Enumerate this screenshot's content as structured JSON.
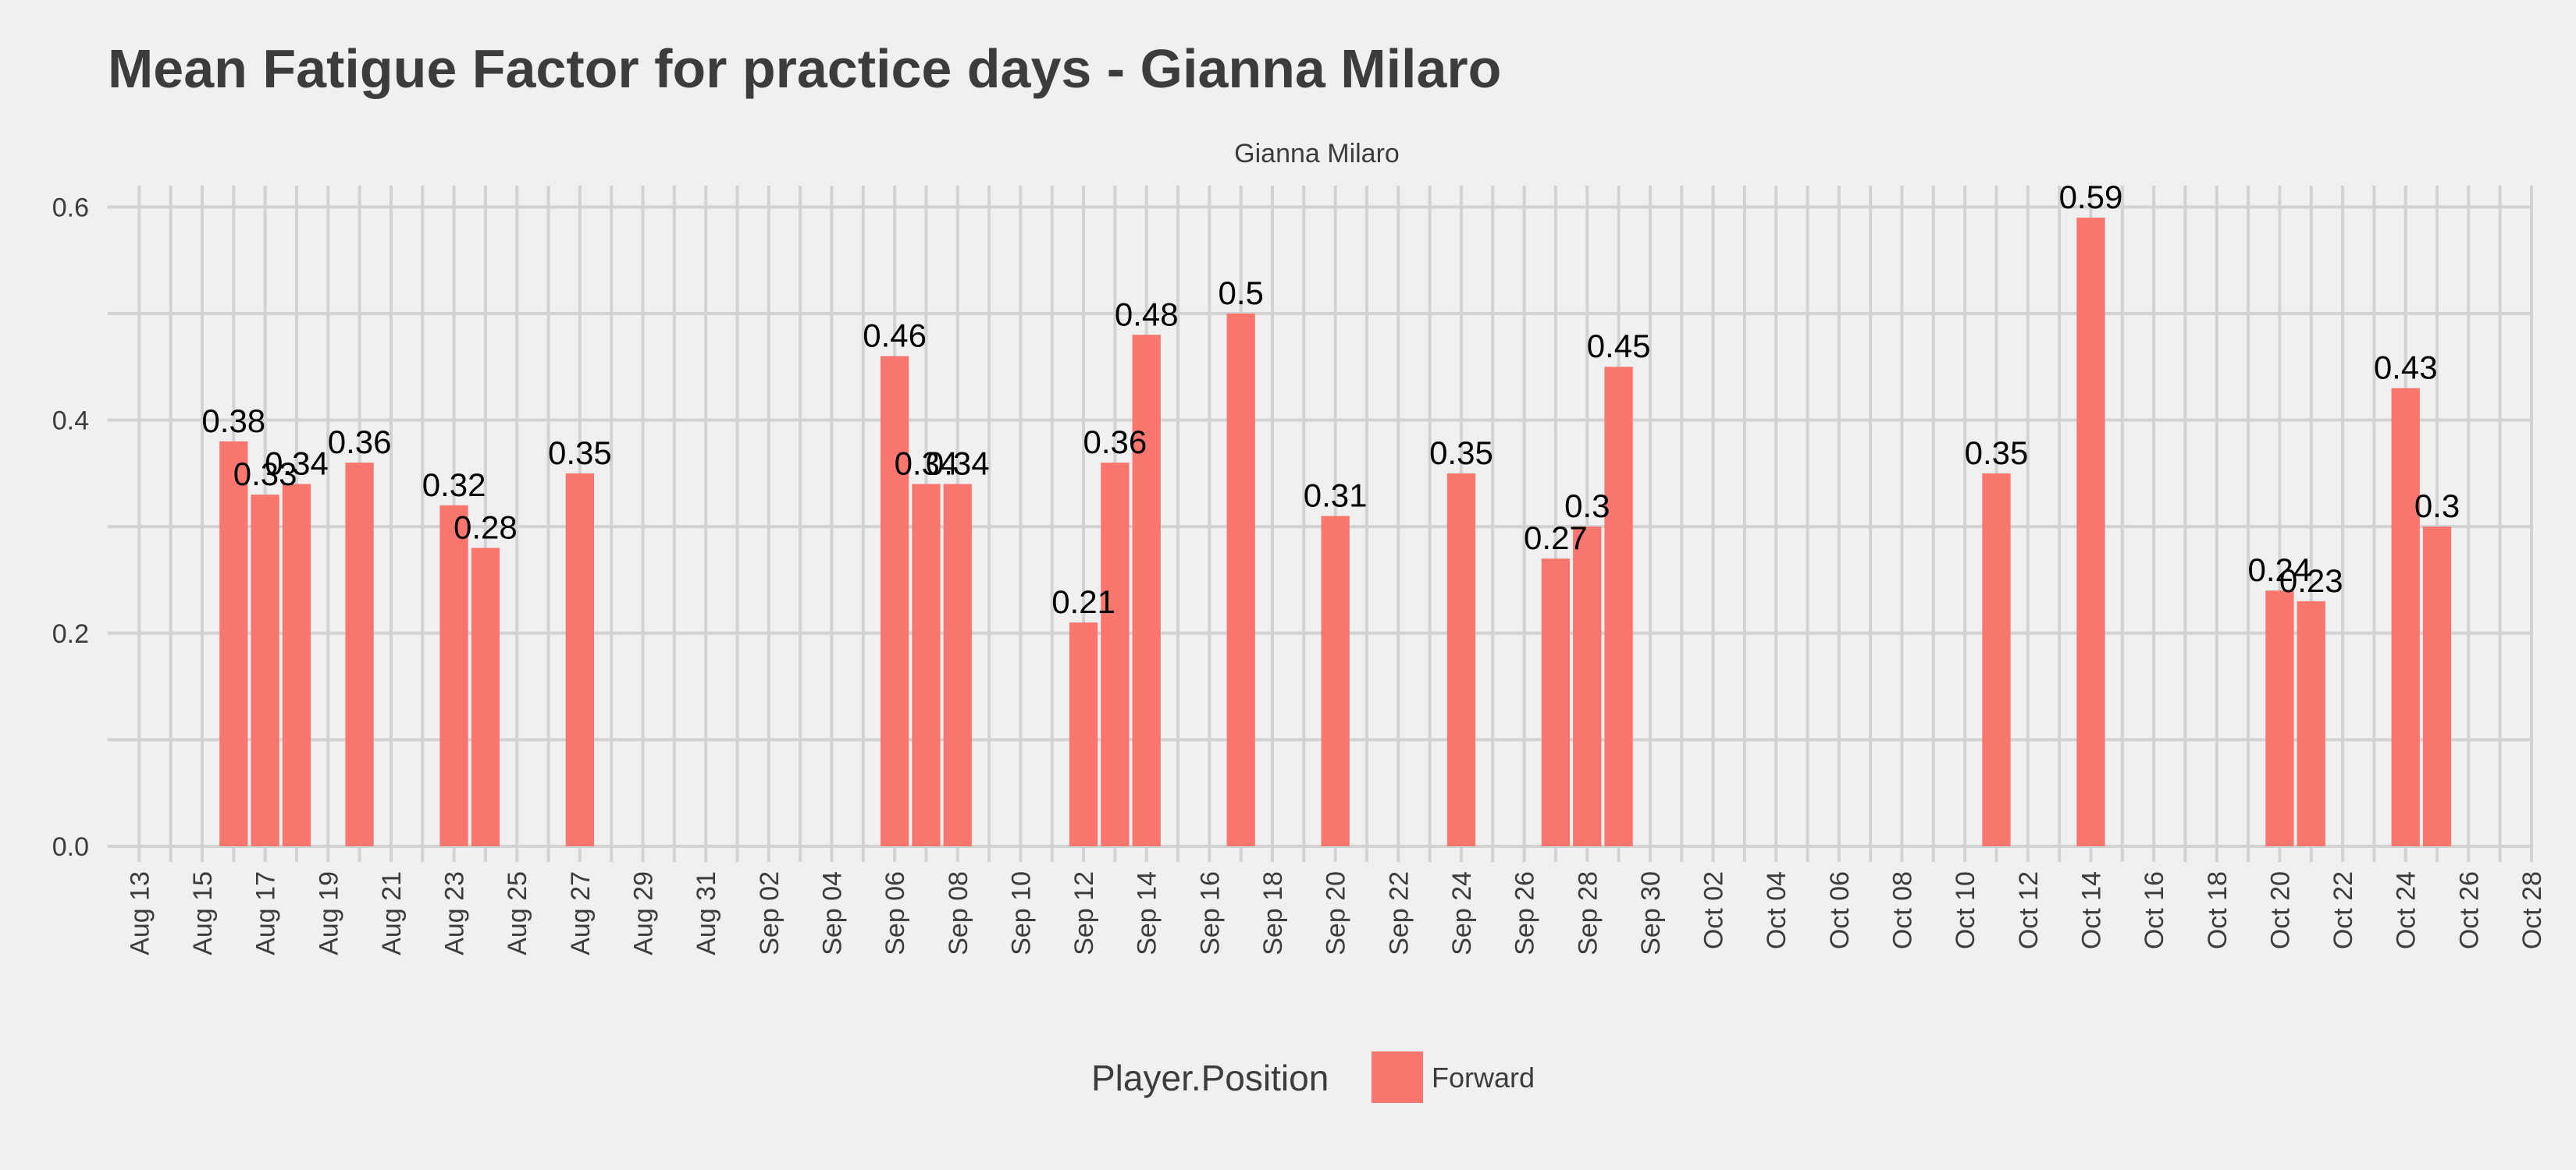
{
  "chart_data": {
    "type": "bar",
    "title": "Mean Fatigue Factor for practice days -  Gianna Milaro",
    "subtitle": "Gianna Milaro",
    "xlabel": "",
    "ylabel": "",
    "x_range": [
      "2023-08-12",
      "2023-10-28"
    ],
    "ylim": [
      0,
      0.62
    ],
    "y_ticks": [
      0.0,
      0.2,
      0.4,
      0.6
    ],
    "y_tick_labels": [
      "0.0",
      "0.2",
      "0.4",
      "0.6"
    ],
    "x_ticks": [
      "2023-08-13",
      "2023-08-15",
      "2023-08-17",
      "2023-08-19",
      "2023-08-21",
      "2023-08-23",
      "2023-08-25",
      "2023-08-27",
      "2023-08-29",
      "2023-08-31",
      "2023-09-02",
      "2023-09-04",
      "2023-09-06",
      "2023-09-08",
      "2023-09-10",
      "2023-09-12",
      "2023-09-14",
      "2023-09-16",
      "2023-09-18",
      "2023-09-20",
      "2023-09-22",
      "2023-09-24",
      "2023-09-26",
      "2023-09-28",
      "2023-09-30",
      "2023-10-02",
      "2023-10-04",
      "2023-10-06",
      "2023-10-08",
      "2023-10-10",
      "2023-10-12",
      "2023-10-14",
      "2023-10-16",
      "2023-10-18",
      "2023-10-20",
      "2023-10-22",
      "2023-10-24",
      "2023-10-26",
      "2023-10-28"
    ],
    "x_tick_labels": [
      "Aug 13",
      "Aug 15",
      "Aug 17",
      "Aug 19",
      "Aug 21",
      "Aug 23",
      "Aug 25",
      "Aug 27",
      "Aug 29",
      "Aug 31",
      "Sep 02",
      "Sep 04",
      "Sep 06",
      "Sep 08",
      "Sep 10",
      "Sep 12",
      "Sep 14",
      "Sep 16",
      "Sep 18",
      "Sep 20",
      "Sep 22",
      "Sep 24",
      "Sep 26",
      "Sep 28",
      "Sep 30",
      "Oct 02",
      "Oct 04",
      "Oct 06",
      "Oct 08",
      "Oct 10",
      "Oct 12",
      "Oct 14",
      "Oct 16",
      "Oct 18",
      "Oct 20",
      "Oct 22",
      "Oct 24",
      "Oct 26",
      "Oct 28"
    ],
    "grid": true,
    "legend": {
      "title": "Player.Position",
      "placement": "bottom"
    },
    "series": [
      {
        "name": "Forward",
        "color": "#f8766d",
        "points": [
          {
            "x": "2023-08-16",
            "y": 0.38,
            "label": "0.38"
          },
          {
            "x": "2023-08-17",
            "y": 0.33,
            "label": "0.33"
          },
          {
            "x": "2023-08-18",
            "y": 0.34,
            "label": "0.34"
          },
          {
            "x": "2023-08-20",
            "y": 0.36,
            "label": "0.36"
          },
          {
            "x": "2023-08-23",
            "y": 0.32,
            "label": "0.32"
          },
          {
            "x": "2023-08-24",
            "y": 0.28,
            "label": "0.28"
          },
          {
            "x": "2023-08-27",
            "y": 0.35,
            "label": "0.35"
          },
          {
            "x": "2023-09-06",
            "y": 0.46,
            "label": "0.46"
          },
          {
            "x": "2023-09-07",
            "y": 0.34,
            "label": "0.34"
          },
          {
            "x": "2023-09-08",
            "y": 0.34,
            "label": "0.34"
          },
          {
            "x": "2023-09-12",
            "y": 0.21,
            "label": "0.21"
          },
          {
            "x": "2023-09-13",
            "y": 0.36,
            "label": "0.36"
          },
          {
            "x": "2023-09-14",
            "y": 0.48,
            "label": "0.48"
          },
          {
            "x": "2023-09-17",
            "y": 0.5,
            "label": "0.5"
          },
          {
            "x": "2023-09-20",
            "y": 0.31,
            "label": "0.31"
          },
          {
            "x": "2023-09-24",
            "y": 0.35,
            "label": "0.35"
          },
          {
            "x": "2023-09-27",
            "y": 0.27,
            "label": "0.27"
          },
          {
            "x": "2023-09-28",
            "y": 0.3,
            "label": "0.3"
          },
          {
            "x": "2023-09-29",
            "y": 0.45,
            "label": "0.45"
          },
          {
            "x": "2023-10-11",
            "y": 0.35,
            "label": "0.35"
          },
          {
            "x": "2023-10-14",
            "y": 0.59,
            "label": "0.59"
          },
          {
            "x": "2023-10-20",
            "y": 0.24,
            "label": "0.24"
          },
          {
            "x": "2023-10-21",
            "y": 0.23,
            "label": "0.23"
          },
          {
            "x": "2023-10-24",
            "y": 0.43,
            "label": "0.43"
          },
          {
            "x": "2023-10-25",
            "y": 0.3,
            "label": "0.3"
          }
        ]
      }
    ]
  }
}
